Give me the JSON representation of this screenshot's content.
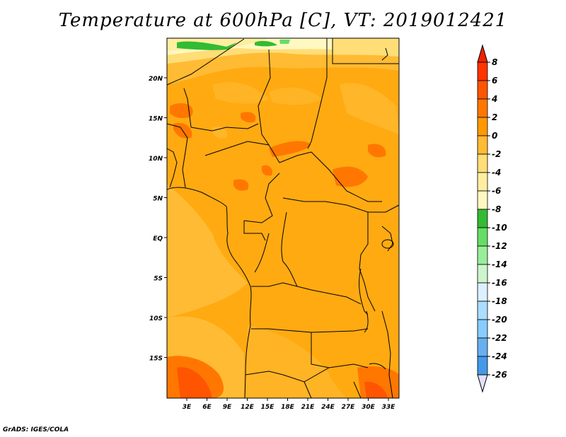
{
  "title": "Temperature at 600hPa [C], VT: 2019012421",
  "credit": "GrADS: IGES/COLA",
  "map": {
    "lat_ticks": [
      "20N",
      "15N",
      "10N",
      "5N",
      "EQ",
      "5S",
      "10S",
      "15S"
    ],
    "lon_ticks": [
      "3E",
      "6E",
      "9E",
      "12E",
      "15E",
      "18E",
      "21E",
      "24E",
      "27E",
      "30E",
      "33E"
    ]
  },
  "colorbar": {
    "labels": [
      "8",
      "6",
      "4",
      "2",
      "0",
      "-2",
      "-4",
      "-6",
      "-8",
      "-10",
      "-12",
      "-14",
      "-16",
      "-18",
      "-20",
      "-22",
      "-24",
      "-26"
    ],
    "colors": [
      "#ff3300",
      "#ff5500",
      "#ff7700",
      "#ff9900",
      "#ffbb33",
      "#ffdd77",
      "#ffeea0",
      "#fff8c0",
      "#33bb33",
      "#66dd66",
      "#99ee99",
      "#ccf5cc",
      "#ddf0ff",
      "#aaddff",
      "#88ccff",
      "#66b0f0",
      "#4499e8",
      "#2277dd",
      "#0f5fcc",
      "#003ba8",
      "#001f88",
      "#000a5a"
    ],
    "over_color": "#ee2200",
    "under_color": "#e0e0ff"
  }
}
